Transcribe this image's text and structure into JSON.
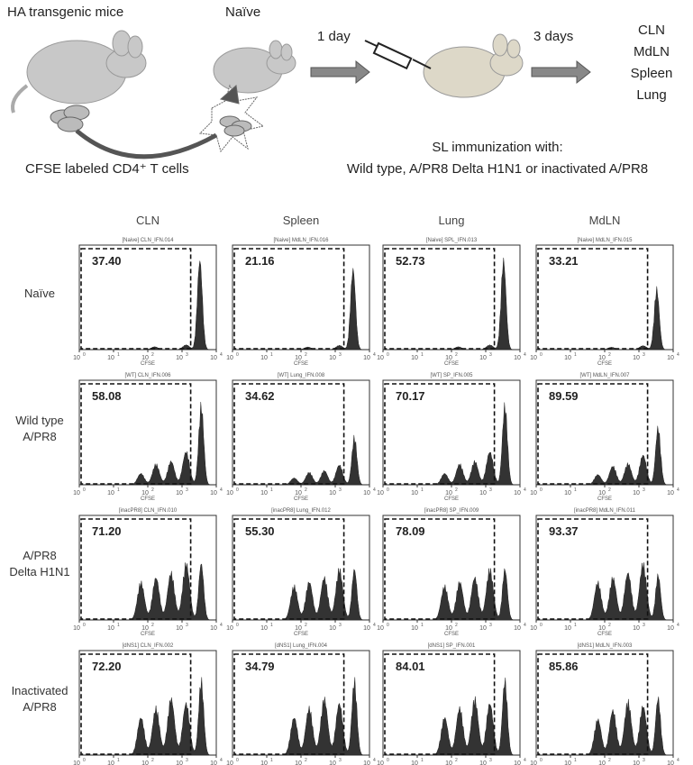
{
  "schematic": {
    "mouse_labels": [
      "HA transgenic mice",
      "Naïve"
    ],
    "steps": [
      "1 day",
      "3 days"
    ],
    "cells": "CFSE labeled CD4⁺ T cells",
    "tissues": [
      "CLN",
      "MdLN",
      "Spleen",
      "Lung"
    ],
    "immunization": [
      "SL immunization with:",
      "Wild type, A/PR8 Delta H1N1 or inactivated A/PR8"
    ]
  },
  "grid": {
    "columns": [
      "CLN",
      "Spleen",
      "Lung",
      "MdLN"
    ],
    "axis": {
      "label": "CFSE",
      "base": "10",
      "exponents": [
        "0",
        "1",
        "2",
        "3",
        "4"
      ]
    },
    "rows": [
      {
        "label": [
          "Naïve"
        ],
        "panels": [
          {
            "file": "[Naive] CLN_IFN.014",
            "percent": "37.40"
          },
          {
            "file": "[Naive] MdLN_IFN.016",
            "percent": "21.16"
          },
          {
            "file": "[Naive] SPL_IFN.013",
            "percent": "52.73"
          },
          {
            "file": "[Naive] MdLN_IFN.015",
            "percent": "33.21"
          }
        ]
      },
      {
        "label": [
          "Wild type",
          "A/PR8"
        ],
        "panels": [
          {
            "file": "[WT] CLN_IFN.006",
            "percent": "58.08"
          },
          {
            "file": "[WT] Lung_IFN.008",
            "percent": "34.62"
          },
          {
            "file": "[WT] SP_IFN.005",
            "percent": "70.17"
          },
          {
            "file": "[WT] MdLN_IFN.007",
            "percent": "89.59"
          }
        ]
      },
      {
        "label": [
          "A/PR8",
          "Delta H1N1"
        ],
        "panels": [
          {
            "file": "[inacPR8] CLN_IFN.010",
            "percent": "71.20"
          },
          {
            "file": "[inacPR8] Lung_IFN.012",
            "percent": "55.30"
          },
          {
            "file": "[inacPR8] SP_IFN.009",
            "percent": "78.09"
          },
          {
            "file": "[inacPR8] MdLN_IFN.011",
            "percent": "93.37"
          }
        ]
      },
      {
        "label": [
          "Inactivated",
          "A/PR8"
        ],
        "panels": [
          {
            "file": "[dNS1] CLN_IFN.002",
            "percent": "72.20"
          },
          {
            "file": "[dNS1] Lung_IFN.004",
            "percent": "34.79"
          },
          {
            "file": "[dNS1] SP_IFN.001",
            "percent": "84.01"
          },
          {
            "file": "[dNS1] MdLN_IFN.003",
            "percent": "85.86"
          }
        ]
      }
    ]
  }
}
